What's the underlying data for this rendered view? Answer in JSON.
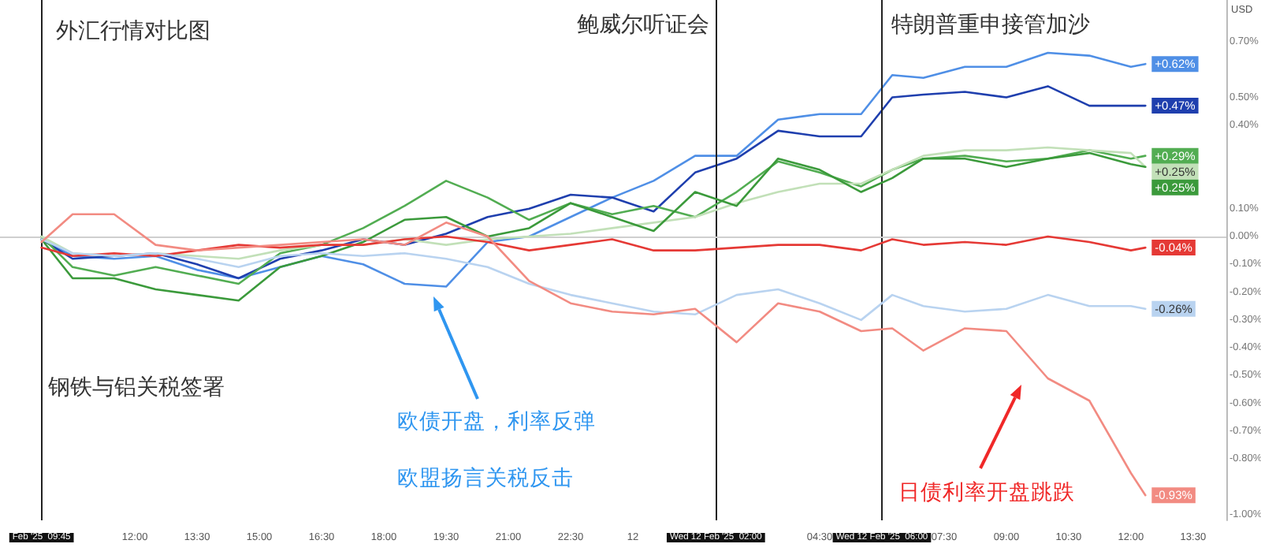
{
  "chart_data": {
    "type": "line",
    "title": "外汇行情对比图",
    "x": [
      "2025-02-11T09:45",
      "2025-02-11T10:30",
      "2025-02-11T11:30",
      "2025-02-11T12:30",
      "2025-02-11T13:30",
      "2025-02-11T14:30",
      "2025-02-11T15:30",
      "2025-02-11T16:30",
      "2025-02-11T17:30",
      "2025-02-11T18:30",
      "2025-02-11T19:30",
      "2025-02-11T20:30",
      "2025-02-11T21:30",
      "2025-02-11T22:30",
      "2025-02-11T23:30",
      "2025-02-12T00:30",
      "2025-02-12T01:30",
      "2025-02-12T02:30",
      "2025-02-12T03:30",
      "2025-02-12T04:30",
      "2025-02-12T05:30",
      "2025-02-12T06:15",
      "2025-02-12T07:00",
      "2025-02-12T08:00",
      "2025-02-12T09:00",
      "2025-02-12T10:00",
      "2025-02-12T11:00",
      "2025-02-12T12:00",
      "2025-02-12T12:21"
    ],
    "xlim": [
      "2025-02-11T08:45",
      "2025-02-12T14:18"
    ],
    "xticks": [
      {
        "value": "2025-02-11T09:45",
        "label": "Feb '25  09:45"
      },
      {
        "value": "2025-02-11T12:00",
        "label": "12:00"
      },
      {
        "value": "2025-02-11T13:30",
        "label": "13:30"
      },
      {
        "value": "2025-02-11T15:00",
        "label": "15:00"
      },
      {
        "value": "2025-02-11T16:30",
        "label": "16:30"
      },
      {
        "value": "2025-02-11T18:00",
        "label": "18:00"
      },
      {
        "value": "2025-02-11T19:30",
        "label": "19:30"
      },
      {
        "value": "2025-02-11T21:00",
        "label": "21:00"
      },
      {
        "value": "2025-02-11T22:30",
        "label": "22:30"
      },
      {
        "value": "2025-02-12T00:00",
        "label": "12"
      },
      {
        "value": "2025-02-12T02:00",
        "label": "Wed 12 Feb '25  02:00"
      },
      {
        "value": "2025-02-12T04:30",
        "label": "04:30"
      },
      {
        "value": "2025-02-12T06:00",
        "label": "Wed 12 Feb '25  06:00"
      },
      {
        "value": "2025-02-12T07:30",
        "label": "07:30"
      },
      {
        "value": "2025-02-12T09:00",
        "label": "09:00"
      },
      {
        "value": "2025-02-12T10:30",
        "label": "10:30"
      },
      {
        "value": "2025-02-12T12:00",
        "label": "12:00"
      },
      {
        "value": "2025-02-12T13:30",
        "label": "13:30"
      }
    ],
    "ylim": [
      -1.02,
      0.85
    ],
    "yticks": [
      {
        "value": 0.7,
        "label": "0.70%"
      },
      {
        "value": 0.5,
        "label": "0.50%"
      },
      {
        "value": 0.4,
        "label": "0.40%"
      },
      {
        "value": 0.1,
        "label": "0.10%"
      },
      {
        "value": 0,
        "label": "0.00%"
      },
      {
        "value": -0.1,
        "label": "-0.10%"
      },
      {
        "value": -0.2,
        "label": "-0.20%"
      },
      {
        "value": -0.3,
        "label": "-0.30%"
      },
      {
        "value": -0.4,
        "label": "-0.40%"
      },
      {
        "value": -0.5,
        "label": "-0.50%"
      },
      {
        "value": -0.6,
        "label": "-0.60%"
      },
      {
        "value": -0.7,
        "label": "-0.70%"
      },
      {
        "value": -0.8,
        "label": "-0.80%"
      },
      {
        "value": -1.0,
        "label": "-1.00%"
      }
    ],
    "series": [
      {
        "color": "#4f8fe6",
        "values": [
          -0.01,
          -0.07,
          -0.08,
          -0.07,
          -0.12,
          -0.15,
          -0.11,
          -0.07,
          -0.1,
          -0.17,
          -0.18,
          -0.02,
          0.0,
          0.07,
          0.14,
          0.2,
          0.29,
          0.29,
          0.42,
          0.44,
          0.44,
          0.58,
          0.57,
          0.61,
          0.61,
          0.66,
          0.65,
          0.61,
          0.62
        ],
        "value_labels": [
          null,
          null,
          null,
          null,
          null,
          null,
          null,
          null,
          null,
          null,
          null,
          null,
          null,
          null,
          null,
          null,
          null,
          null,
          null,
          null,
          null,
          null,
          null,
          null,
          null,
          null,
          null,
          null,
          "+0.62%"
        ]
      },
      {
        "color": "#1f3fae",
        "values": [
          -0.01,
          -0.08,
          -0.07,
          -0.06,
          -0.1,
          -0.15,
          -0.08,
          -0.05,
          -0.01,
          -0.03,
          0.01,
          0.07,
          0.1,
          0.15,
          0.14,
          0.09,
          0.23,
          0.28,
          0.38,
          0.36,
          0.36,
          0.5,
          0.51,
          0.52,
          0.5,
          0.54,
          0.47,
          0.47,
          0.47
        ],
        "value_labels": [
          null,
          null,
          null,
          null,
          null,
          null,
          null,
          null,
          null,
          null,
          null,
          null,
          null,
          null,
          null,
          null,
          null,
          null,
          null,
          null,
          null,
          null,
          null,
          null,
          null,
          null,
          null,
          null,
          "+0.47%"
        ]
      },
      {
        "color": "#52ad52",
        "values": [
          0.0,
          -0.11,
          -0.14,
          -0.11,
          -0.14,
          -0.17,
          -0.06,
          -0.03,
          0.03,
          0.11,
          0.2,
          0.14,
          0.06,
          0.12,
          0.08,
          0.11,
          0.07,
          0.16,
          0.27,
          0.23,
          0.18,
          0.24,
          0.28,
          0.29,
          0.27,
          0.28,
          0.31,
          0.28,
          0.29
        ],
        "value_labels": [
          null,
          null,
          null,
          null,
          null,
          null,
          null,
          null,
          null,
          null,
          null,
          null,
          null,
          null,
          null,
          null,
          null,
          null,
          null,
          null,
          null,
          null,
          null,
          null,
          null,
          null,
          null,
          null,
          "+0.29%"
        ]
      },
      {
        "color": "#c2e0b8",
        "values": [
          0.0,
          -0.06,
          -0.07,
          -0.06,
          -0.07,
          -0.08,
          -0.05,
          -0.03,
          -0.03,
          -0.01,
          -0.03,
          -0.01,
          0.0,
          0.01,
          0.03,
          0.05,
          0.07,
          0.12,
          0.16,
          0.19,
          0.19,
          0.24,
          0.29,
          0.31,
          0.31,
          0.32,
          0.31,
          0.3,
          0.25
        ],
        "value_labels": [
          null,
          null,
          null,
          null,
          null,
          null,
          null,
          null,
          null,
          null,
          null,
          null,
          null,
          null,
          null,
          null,
          null,
          null,
          null,
          null,
          null,
          null,
          null,
          null,
          null,
          null,
          null,
          null,
          "+0.25%"
        ]
      },
      {
        "color": "#3b9a3b",
        "values": [
          -0.01,
          -0.15,
          -0.15,
          -0.19,
          -0.21,
          -0.23,
          -0.11,
          -0.07,
          -0.02,
          0.06,
          0.07,
          0.0,
          0.03,
          0.12,
          0.07,
          0.02,
          0.16,
          0.11,
          0.28,
          0.24,
          0.16,
          0.21,
          0.28,
          0.28,
          0.25,
          0.28,
          0.3,
          0.26,
          0.25
        ],
        "value_labels": [
          null,
          null,
          null,
          null,
          null,
          null,
          null,
          null,
          null,
          null,
          null,
          null,
          null,
          null,
          null,
          null,
          null,
          null,
          null,
          null,
          null,
          null,
          null,
          null,
          null,
          null,
          null,
          null,
          "+0.25%"
        ]
      },
      {
        "color": "#e53935",
        "values": [
          -0.04,
          -0.07,
          -0.06,
          -0.07,
          -0.05,
          -0.03,
          -0.04,
          -0.03,
          -0.03,
          -0.01,
          0.0,
          -0.02,
          -0.05,
          -0.03,
          -0.01,
          -0.05,
          -0.05,
          -0.04,
          -0.03,
          -0.03,
          -0.05,
          -0.01,
          -0.03,
          -0.02,
          -0.03,
          0.0,
          -0.02,
          -0.05,
          -0.04
        ],
        "value_labels": [
          null,
          null,
          null,
          null,
          null,
          null,
          null,
          null,
          null,
          null,
          null,
          null,
          null,
          null,
          null,
          null,
          null,
          null,
          null,
          null,
          null,
          null,
          null,
          null,
          null,
          null,
          null,
          null,
          "-0.04%"
        ]
      },
      {
        "color": "#b9d3f0",
        "values": [
          -0.01,
          -0.06,
          -0.07,
          -0.06,
          -0.08,
          -0.11,
          -0.07,
          -0.06,
          -0.07,
          -0.06,
          -0.08,
          -0.11,
          -0.17,
          -0.21,
          -0.24,
          -0.27,
          -0.28,
          -0.21,
          -0.19,
          -0.24,
          -0.3,
          -0.21,
          -0.25,
          -0.27,
          -0.26,
          -0.21,
          -0.25,
          -0.25,
          -0.26
        ],
        "value_labels": [
          null,
          null,
          null,
          null,
          null,
          null,
          null,
          null,
          null,
          null,
          null,
          null,
          null,
          null,
          null,
          null,
          null,
          null,
          null,
          null,
          null,
          null,
          null,
          null,
          null,
          null,
          null,
          null,
          "-0.26%"
        ]
      },
      {
        "color": "#f28b82",
        "values": [
          -0.02,
          0.08,
          0.08,
          -0.03,
          -0.05,
          -0.04,
          -0.03,
          -0.02,
          -0.01,
          -0.03,
          0.05,
          0.0,
          -0.16,
          -0.24,
          -0.27,
          -0.28,
          -0.26,
          -0.38,
          -0.24,
          -0.27,
          -0.34,
          -0.33,
          -0.41,
          -0.33,
          -0.34,
          -0.51,
          -0.59,
          -0.85,
          -0.93
        ],
        "value_labels": [
          null,
          null,
          null,
          null,
          null,
          null,
          null,
          null,
          null,
          null,
          null,
          null,
          null,
          null,
          null,
          null,
          null,
          null,
          null,
          null,
          null,
          null,
          null,
          null,
          null,
          null,
          null,
          null,
          "-0.93%"
        ]
      }
    ],
    "ref_lines": [
      {
        "axis": "x",
        "value": "2025-02-11T09:45",
        "label": "钢铁与铝关税签署",
        "color": "#222222"
      },
      {
        "axis": "x",
        "value": "2025-02-12T02:00",
        "label": "鲍威尔听证会",
        "color": "#222222"
      },
      {
        "axis": "x",
        "value": "2025-02-12T06:00",
        "label": "特朗普重申接管加沙",
        "color": "#222222"
      },
      {
        "axis": "y",
        "value": 0,
        "color": "#cfcfcf"
      }
    ],
    "annotations": [
      "欧债开盘，利率反弹",
      "欧盟扬言关税反击",
      "日债利率开盘跳跌",
      "USD"
    ],
    "grid": false,
    "marker": "none",
    "line_style": "solid"
  }
}
